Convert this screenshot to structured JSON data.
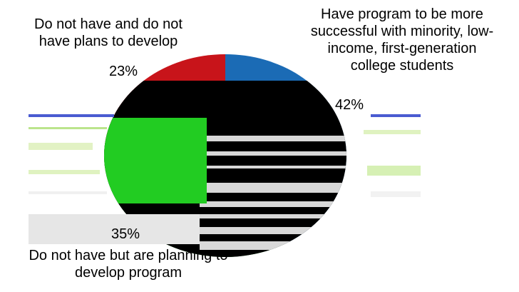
{
  "chart_data": {
    "type": "pie",
    "title": "",
    "slices": [
      {
        "label": "Have program to be more successful with minority, low-income, first-generation college students",
        "label_lines": [
          "Have program to be more",
          "successful with minority, low-",
          "income, first-generation",
          "college students"
        ],
        "value": 42,
        "value_label": "42%",
        "color": "#1b6bb5"
      },
      {
        "label": "Do not have but are planning to develop program",
        "label_lines": [
          "Do not have but are planning to",
          "develop program"
        ],
        "value": 35,
        "value_label": "35%",
        "color": "#2fbf2f"
      },
      {
        "label": "Do not have and do not have plans to develop",
        "label_lines": [
          "Do not have and do not",
          "have plans to develop"
        ],
        "value": 23,
        "value_label": "23%",
        "color": "#c8141a"
      }
    ]
  }
}
